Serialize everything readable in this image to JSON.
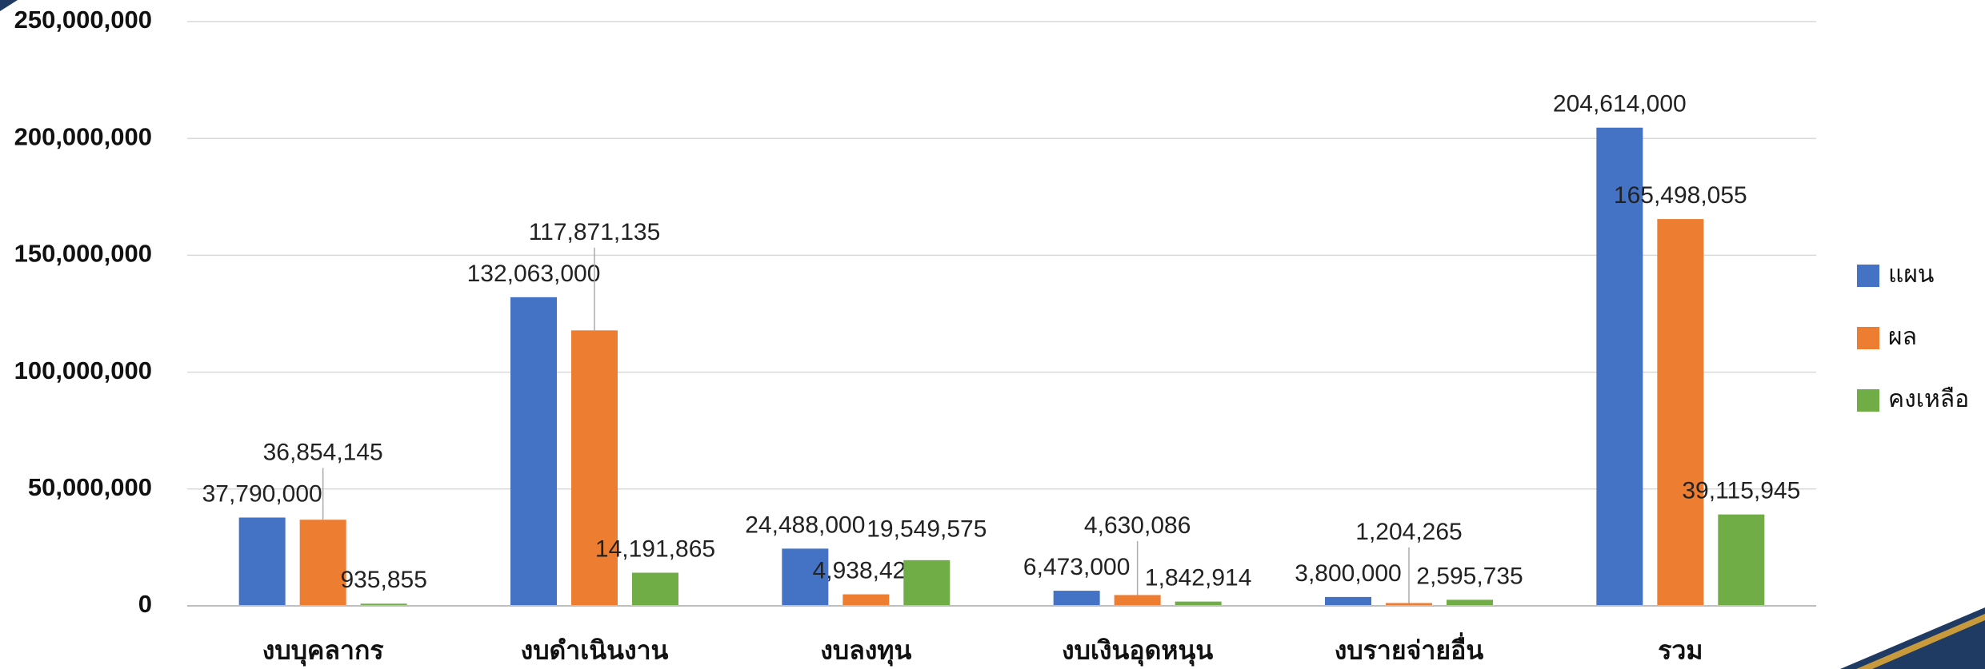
{
  "chart_data": {
    "type": "bar",
    "categories": [
      "งบบุคลากร",
      "งบดำเนินงาน",
      "งบลงทุน",
      "งบเงินอุดหนุน",
      "งบรายจ่ายอื่น",
      "รวม"
    ],
    "series": [
      {
        "name": "แผน",
        "color": "#4472c4",
        "values": [
          37790000,
          132063000,
          24488000,
          6473000,
          3800000,
          204614000
        ],
        "value_labels": [
          "37,790,000",
          "132,063,000",
          "24,488,000",
          "6,473,000",
          "3,800,000",
          "204,614,000"
        ]
      },
      {
        "name": "ผล",
        "color": "#ed7d31",
        "values": [
          36854145,
          117871135,
          4938425,
          4630086,
          1204265,
          165498055
        ],
        "value_labels": [
          "36,854,145",
          "117,871,135",
          "4,938,425",
          "4,630,086",
          "1,204,265",
          "165,498,055"
        ]
      },
      {
        "name": "คงเหลือ",
        "color": "#70ad47",
        "values": [
          935855,
          14191865,
          19549575,
          1842914,
          2595735,
          39115945
        ],
        "value_labels": [
          "935,855",
          "14,191,865",
          "19,549,575",
          "1,842,914",
          "2,595,735",
          "39,115,945"
        ]
      }
    ],
    "ylim": [
      0,
      250000000
    ],
    "yticks": [
      0,
      {
        "value": 50000000,
        "label": "50,000,000"
      },
      {
        "value": 100000000,
        "label": "100,000,000"
      },
      {
        "value": 150000000,
        "label": "150,000,000"
      },
      {
        "value": 200000000,
        "label": "200,000,000"
      },
      {
        "value": 250000000,
        "label": "250,000,000"
      }
    ],
    "grid": true,
    "legend": "right"
  }
}
